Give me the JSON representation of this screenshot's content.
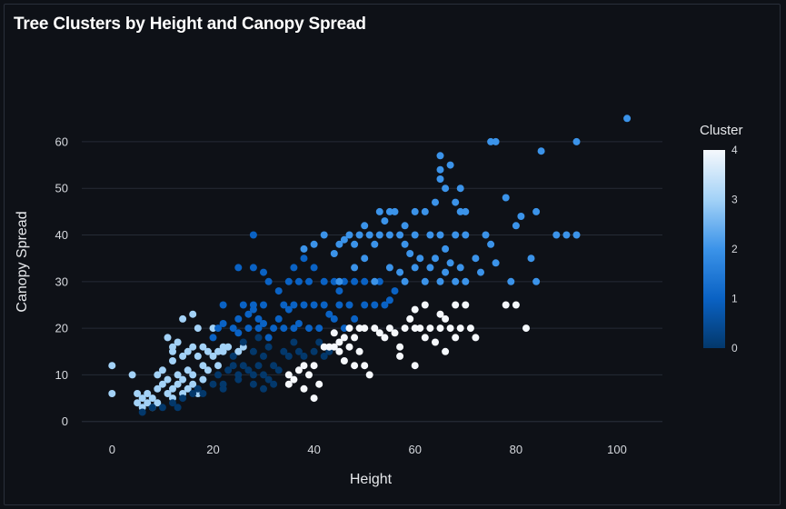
{
  "chart_data": {
    "type": "scatter",
    "title": "Tree Clusters by Height and Canopy Spread",
    "xlabel": "Height",
    "ylabel": "Canopy Spread",
    "xlim": [
      -6,
      109
    ],
    "ylim": [
      -2,
      67
    ],
    "x_ticks": [
      0,
      20,
      40,
      60,
      80,
      100
    ],
    "y_ticks": [
      0,
      10,
      20,
      30,
      40,
      50,
      60
    ],
    "grid": "horizontal",
    "legend": {
      "title": "Cluster",
      "type": "colorbar",
      "placement": "right",
      "range": [
        0,
        4
      ],
      "ticks": [
        0,
        1,
        2,
        3,
        4
      ]
    },
    "colorscale": [
      "#03386b",
      "#0a62c4",
      "#3b93e9",
      "#a3d2f7",
      "#f5f8fc"
    ],
    "background": "#0e1117",
    "gridline_color": "#262b36",
    "points": [
      [
        0,
        12,
        3
      ],
      [
        0,
        6,
        3
      ],
      [
        4,
        10,
        3
      ],
      [
        5,
        6,
        3
      ],
      [
        5,
        4,
        3
      ],
      [
        6,
        3,
        3
      ],
      [
        6,
        5,
        3
      ],
      [
        7,
        4,
        3
      ],
      [
        7,
        6,
        3
      ],
      [
        8,
        3,
        3
      ],
      [
        8,
        5,
        3
      ],
      [
        9,
        4,
        3
      ],
      [
        9,
        7,
        3
      ],
      [
        9,
        10,
        3
      ],
      [
        10,
        11,
        3
      ],
      [
        10,
        8,
        3
      ],
      [
        11,
        6,
        3
      ],
      [
        11,
        9,
        3
      ],
      [
        12,
        5,
        3
      ],
      [
        12,
        7,
        3
      ],
      [
        12,
        13,
        3
      ],
      [
        13,
        8,
        3
      ],
      [
        13,
        10,
        3
      ],
      [
        14,
        6,
        3
      ],
      [
        14,
        9,
        3
      ],
      [
        15,
        7,
        3
      ],
      [
        15,
        11,
        3
      ],
      [
        16,
        10,
        3
      ],
      [
        16,
        8,
        3
      ],
      [
        17,
        6,
        3
      ],
      [
        18,
        9,
        3
      ],
      [
        11,
        18,
        3
      ],
      [
        12,
        16,
        3
      ],
      [
        12,
        15,
        3
      ],
      [
        13,
        17,
        3
      ],
      [
        14,
        14,
        3
      ],
      [
        14,
        22,
        3
      ],
      [
        15,
        15,
        3
      ],
      [
        16,
        16,
        3
      ],
      [
        16,
        23,
        3
      ],
      [
        17,
        14,
        3
      ],
      [
        17,
        20,
        3
      ],
      [
        18,
        16,
        3
      ],
      [
        19,
        15,
        3
      ],
      [
        20,
        14,
        3
      ],
      [
        20,
        20,
        3
      ],
      [
        21,
        15,
        3
      ],
      [
        22,
        16,
        3
      ],
      [
        22,
        15,
        3
      ],
      [
        23,
        16,
        3
      ],
      [
        25,
        15,
        3
      ],
      [
        26,
        16,
        3
      ],
      [
        18,
        12,
        3
      ],
      [
        19,
        11,
        3
      ],
      [
        21,
        12,
        3
      ],
      [
        6,
        2,
        0
      ],
      [
        8,
        3,
        0
      ],
      [
        10,
        3,
        0
      ],
      [
        12,
        4,
        0
      ],
      [
        13,
        3,
        0
      ],
      [
        14,
        5,
        0
      ],
      [
        16,
        6,
        0
      ],
      [
        17,
        7,
        0
      ],
      [
        18,
        6,
        0
      ],
      [
        20,
        8,
        0
      ],
      [
        21,
        10,
        0
      ],
      [
        22,
        8,
        0
      ],
      [
        23,
        11,
        0
      ],
      [
        24,
        12,
        0
      ],
      [
        25,
        10,
        0
      ],
      [
        26,
        12,
        0
      ],
      [
        27,
        11,
        0
      ],
      [
        28,
        10,
        0
      ],
      [
        29,
        12,
        0
      ],
      [
        30,
        10,
        0
      ],
      [
        31,
        9,
        0
      ],
      [
        32,
        12,
        0
      ],
      [
        33,
        11,
        0
      ],
      [
        24,
        14,
        0
      ],
      [
        26,
        17,
        0
      ],
      [
        28,
        15,
        0
      ],
      [
        29,
        18,
        0
      ],
      [
        30,
        14,
        0
      ],
      [
        31,
        16,
        0
      ],
      [
        34,
        15,
        0
      ],
      [
        35,
        14,
        0
      ],
      [
        36,
        17,
        0
      ],
      [
        37,
        15,
        0
      ],
      [
        38,
        14,
        0
      ],
      [
        40,
        15,
        0
      ],
      [
        41,
        17,
        0
      ],
      [
        42,
        14,
        0
      ],
      [
        43,
        15,
        0
      ],
      [
        22,
        7,
        0
      ],
      [
        25,
        9,
        0
      ],
      [
        28,
        8,
        0
      ],
      [
        30,
        7,
        0
      ],
      [
        32,
        8,
        0
      ],
      [
        20,
        18,
        1
      ],
      [
        21,
        20,
        1
      ],
      [
        22,
        21,
        1
      ],
      [
        22,
        25,
        1
      ],
      [
        24,
        20,
        1
      ],
      [
        25,
        19,
        1
      ],
      [
        25,
        22,
        1
      ],
      [
        26,
        25,
        1
      ],
      [
        27,
        20,
        1
      ],
      [
        27,
        23,
        1
      ],
      [
        28,
        24,
        1
      ],
      [
        28,
        25,
        1
      ],
      [
        29,
        20,
        1
      ],
      [
        29,
        22,
        1
      ],
      [
        30,
        25,
        1
      ],
      [
        30,
        21,
        1
      ],
      [
        31,
        30,
        1
      ],
      [
        31,
        18,
        1
      ],
      [
        32,
        20,
        1
      ],
      [
        33,
        22,
        1
      ],
      [
        34,
        25,
        1
      ],
      [
        34,
        20,
        1
      ],
      [
        35,
        24,
        1
      ],
      [
        35,
        30,
        1
      ],
      [
        36,
        25,
        1
      ],
      [
        36,
        20,
        1
      ],
      [
        37,
        21,
        1
      ],
      [
        37,
        30,
        1
      ],
      [
        38,
        25,
        1
      ],
      [
        38,
        35,
        1
      ],
      [
        39,
        20,
        1
      ],
      [
        39,
        30,
        1
      ],
      [
        40,
        25,
        1
      ],
      [
        40,
        33,
        1
      ],
      [
        41,
        20,
        1
      ],
      [
        42,
        30,
        1
      ],
      [
        42,
        25,
        1
      ],
      [
        43,
        23,
        1
      ],
      [
        44,
        22,
        1
      ],
      [
        45,
        25,
        1
      ],
      [
        46,
        20,
        1
      ],
      [
        47,
        25,
        1
      ],
      [
        48,
        22,
        1
      ],
      [
        50,
        25,
        1
      ],
      [
        52,
        25,
        1
      ],
      [
        54,
        25,
        1
      ],
      [
        55,
        26,
        1
      ],
      [
        28,
        40,
        1
      ],
      [
        28,
        33,
        1
      ],
      [
        30,
        32,
        1
      ],
      [
        33,
        28,
        1
      ],
      [
        36,
        33,
        1
      ],
      [
        44,
        30,
        1
      ],
      [
        45,
        28,
        1
      ],
      [
        46,
        30,
        1
      ],
      [
        48,
        30,
        1
      ],
      [
        50,
        30,
        1
      ],
      [
        53,
        30,
        1
      ],
      [
        56,
        28,
        1
      ],
      [
        25,
        33,
        1
      ],
      [
        38,
        37,
        2
      ],
      [
        40,
        38,
        2
      ],
      [
        42,
        40,
        2
      ],
      [
        44,
        36,
        2
      ],
      [
        45,
        38,
        2
      ],
      [
        46,
        39,
        2
      ],
      [
        47,
        40,
        2
      ],
      [
        48,
        38,
        2
      ],
      [
        49,
        40,
        2
      ],
      [
        50,
        42,
        2
      ],
      [
        51,
        40,
        2
      ],
      [
        52,
        38,
        2
      ],
      [
        53,
        40,
        2
      ],
      [
        54,
        43,
        2
      ],
      [
        55,
        40,
        2
      ],
      [
        56,
        45,
        2
      ],
      [
        57,
        40,
        2
      ],
      [
        58,
        38,
        2
      ],
      [
        59,
        36,
        2
      ],
      [
        60,
        40,
        2
      ],
      [
        61,
        35,
        2
      ],
      [
        62,
        45,
        2
      ],
      [
        63,
        40,
        2
      ],
      [
        64,
        35,
        2
      ],
      [
        65,
        40,
        2
      ],
      [
        66,
        37,
        2
      ],
      [
        67,
        34,
        2
      ],
      [
        68,
        40,
        2
      ],
      [
        69,
        45,
        2
      ],
      [
        70,
        40,
        2
      ],
      [
        45,
        30,
        2
      ],
      [
        48,
        33,
        2
      ],
      [
        50,
        35,
        2
      ],
      [
        52,
        30,
        2
      ],
      [
        55,
        33,
        2
      ],
      [
        57,
        32,
        2
      ],
      [
        58,
        30,
        2
      ],
      [
        60,
        33,
        2
      ],
      [
        62,
        30,
        2
      ],
      [
        63,
        33,
        2
      ],
      [
        65,
        30,
        2
      ],
      [
        66,
        32,
        2
      ],
      [
        68,
        30,
        2
      ],
      [
        69,
        33,
        2
      ],
      [
        70,
        30,
        2
      ],
      [
        64,
        47,
        2
      ],
      [
        65,
        52,
        2
      ],
      [
        65,
        54,
        2
      ],
      [
        65,
        57,
        2
      ],
      [
        66,
        50,
        2
      ],
      [
        67,
        55,
        2
      ],
      [
        68,
        47,
        2
      ],
      [
        69,
        50,
        2
      ],
      [
        70,
        45,
        2
      ],
      [
        72,
        35,
        2
      ],
      [
        73,
        32,
        2
      ],
      [
        74,
        40,
        2
      ],
      [
        75,
        38,
        2
      ],
      [
        75,
        60,
        2
      ],
      [
        76,
        60,
        2
      ],
      [
        76,
        34,
        2
      ],
      [
        78,
        48,
        2
      ],
      [
        79,
        30,
        2
      ],
      [
        80,
        42,
        2
      ],
      [
        81,
        44,
        2
      ],
      [
        83,
        35,
        2
      ],
      [
        84,
        45,
        2
      ],
      [
        84,
        30,
        2
      ],
      [
        85,
        58,
        2
      ],
      [
        88,
        40,
        2
      ],
      [
        90,
        40,
        2
      ],
      [
        92,
        40,
        2
      ],
      [
        92,
        60,
        2
      ],
      [
        102,
        65,
        2
      ],
      [
        53,
        45,
        2
      ],
      [
        55,
        45,
        2
      ],
      [
        60,
        45,
        2
      ],
      [
        58,
        42,
        2
      ],
      [
        35,
        8,
        4
      ],
      [
        35,
        10,
        4
      ],
      [
        36,
        9,
        4
      ],
      [
        37,
        11,
        4
      ],
      [
        38,
        7,
        4
      ],
      [
        38,
        12,
        4
      ],
      [
        39,
        10,
        4
      ],
      [
        40,
        12,
        4
      ],
      [
        40,
        5,
        4
      ],
      [
        41,
        8,
        4
      ],
      [
        42,
        16,
        4
      ],
      [
        43,
        16,
        4
      ],
      [
        44,
        16,
        4
      ],
      [
        45,
        17,
        4
      ],
      [
        45,
        15,
        4
      ],
      [
        46,
        18,
        4
      ],
      [
        46,
        13,
        4
      ],
      [
        47,
        20,
        4
      ],
      [
        47,
        16,
        4
      ],
      [
        48,
        18,
        4
      ],
      [
        48,
        12,
        4
      ],
      [
        49,
        20,
        4
      ],
      [
        49,
        15,
        4
      ],
      [
        50,
        20,
        4
      ],
      [
        50,
        12,
        4
      ],
      [
        51,
        10,
        4
      ],
      [
        52,
        20,
        4
      ],
      [
        53,
        19,
        4
      ],
      [
        55,
        20,
        4
      ],
      [
        56,
        19,
        4
      ],
      [
        57,
        16,
        4
      ],
      [
        57,
        14,
        4
      ],
      [
        58,
        20,
        4
      ],
      [
        59,
        22,
        4
      ],
      [
        60,
        20,
        4
      ],
      [
        60,
        12,
        4
      ],
      [
        61,
        20,
        4
      ],
      [
        62,
        18,
        4
      ],
      [
        63,
        20,
        4
      ],
      [
        64,
        17,
        4
      ],
      [
        65,
        20,
        4
      ],
      [
        65,
        23,
        4
      ],
      [
        66,
        22,
        4
      ],
      [
        66,
        15,
        4
      ],
      [
        67,
        20,
        4
      ],
      [
        68,
        25,
        4
      ],
      [
        68,
        18,
        4
      ],
      [
        69,
        20,
        4
      ],
      [
        70,
        25,
        4
      ],
      [
        71,
        20,
        4
      ],
      [
        72,
        18,
        4
      ],
      [
        78,
        25,
        4
      ],
      [
        80,
        25,
        4
      ],
      [
        82,
        20,
        4
      ],
      [
        62,
        25,
        4
      ],
      [
        60,
        24,
        4
      ],
      [
        54,
        18,
        4
      ],
      [
        44,
        19,
        4
      ]
    ]
  }
}
